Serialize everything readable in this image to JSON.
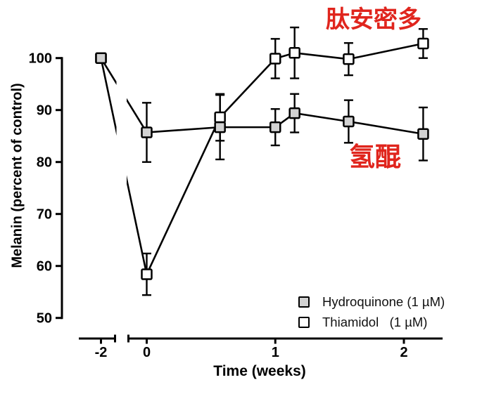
{
  "chart_data": {
    "type": "line",
    "title": "",
    "xlabel": "Time (weeks)",
    "ylabel": "Melanin (percent of control)",
    "x_ticks": [
      -2,
      0,
      1,
      2
    ],
    "y_ticks": [
      50,
      60,
      70,
      80,
      90,
      100
    ],
    "ylim": [
      50,
      100
    ],
    "xlim_main": [
      -0.15,
      2.3
    ],
    "x_axis_break_between": [
      -2,
      0
    ],
    "grid": false,
    "line_color": "#000000",
    "series": [
      {
        "name": "Thiamidol (1 µM)",
        "marker": "open-square",
        "fill": "#ffffff",
        "x": [
          -2,
          0,
          0.57,
          1,
          1.15,
          1.57,
          2.15
        ],
        "y": [
          100,
          58.4,
          88.6,
          99.9,
          101,
          99.8,
          102.8
        ],
        "err": [
          0,
          4,
          4.5,
          3.8,
          4.9,
          3.1,
          2.8
        ]
      },
      {
        "name": "Hydroquinone (1 µM)",
        "marker": "filled-square",
        "fill": "#d2d2d2",
        "x": [
          -2,
          0,
          0.57,
          1,
          1.15,
          1.57,
          2.15
        ],
        "y": [
          100,
          85.7,
          86.7,
          86.7,
          89.4,
          87.8,
          85.4
        ],
        "err": [
          0,
          5.7,
          6.2,
          3.5,
          3.7,
          4.1,
          5.1
        ]
      }
    ],
    "legend": {
      "position": "inside-bottom-right",
      "items": [
        {
          "label": "Hydroquinone (1 µM)",
          "fill": "#d2d2d2"
        },
        {
          "label": "Thiamidol   (1 µM)",
          "fill": "#ffffff"
        }
      ]
    },
    "annotations": [
      {
        "text": "肽安密多",
        "color": "#e0251d",
        "refers_to": "Thiamidol series"
      },
      {
        "text": "氢醌",
        "color": "#e0251d",
        "refers_to": "Hydroquinone series"
      }
    ]
  }
}
